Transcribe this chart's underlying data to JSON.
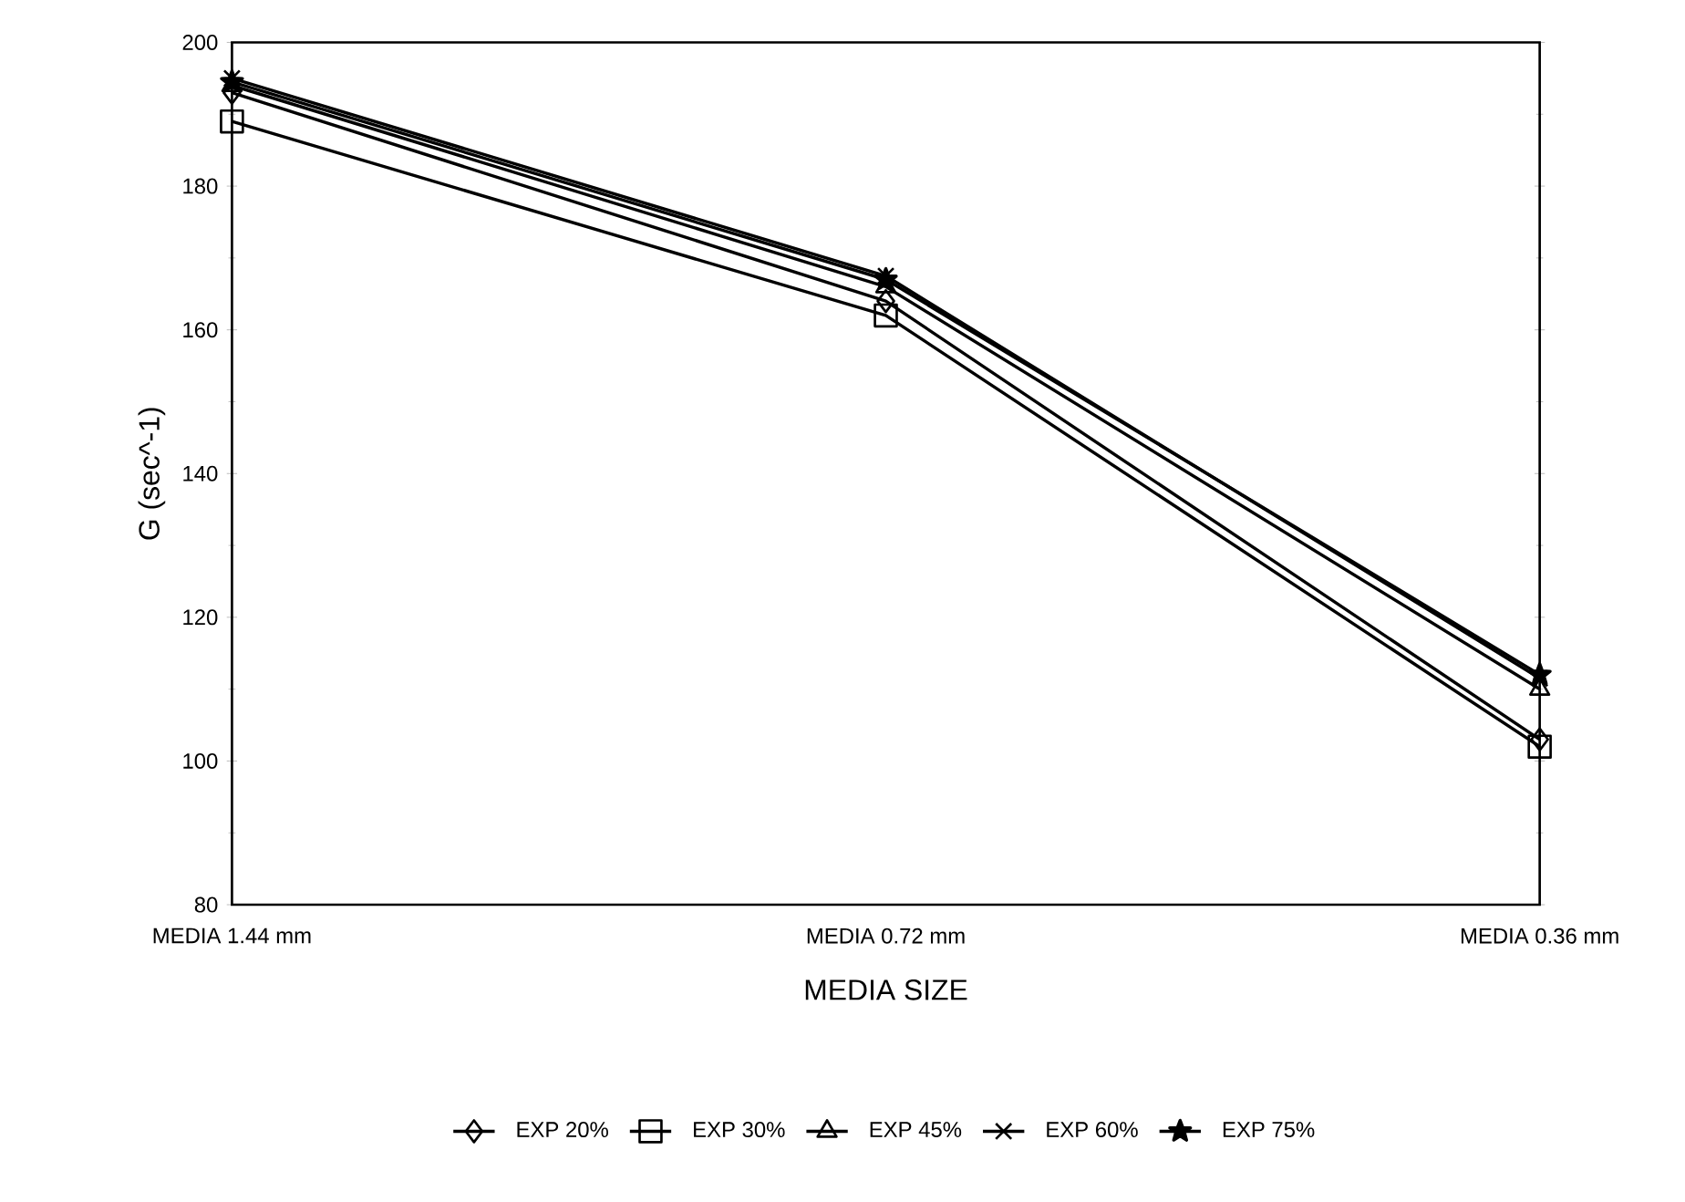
{
  "chart_data": {
    "type": "line",
    "xlabel": "MEDIA SIZE",
    "ylabel": "G (sec^-1)",
    "categories": [
      "MEDIA 1.44 mm",
      "MEDIA 0.72 mm",
      "MEDIA 0.36 mm"
    ],
    "ylim": [
      80,
      200
    ],
    "yticks": [
      80,
      100,
      120,
      140,
      160,
      180,
      200
    ],
    "grid": false,
    "legend": "bottom",
    "line_style": "solid",
    "series": [
      {
        "name": "EXP 20%",
        "color": "#000000",
        "marker": "diamond",
        "values": [
          193,
          164,
          103
        ]
      },
      {
        "name": "EXP 30%",
        "color": "#000000",
        "marker": "square",
        "values": [
          189,
          162,
          102
        ]
      },
      {
        "name": "EXP 45%",
        "color": "#000000",
        "marker": "triangle",
        "values": [
          194,
          166,
          110
        ]
      },
      {
        "name": "EXP 60%",
        "color": "#000000",
        "marker": "cross",
        "values": [
          195,
          167.5,
          111.5
        ]
      },
      {
        "name": "EXP 75%",
        "color": "#000000",
        "marker": "star",
        "values": [
          194.5,
          167,
          112
        ]
      }
    ]
  }
}
